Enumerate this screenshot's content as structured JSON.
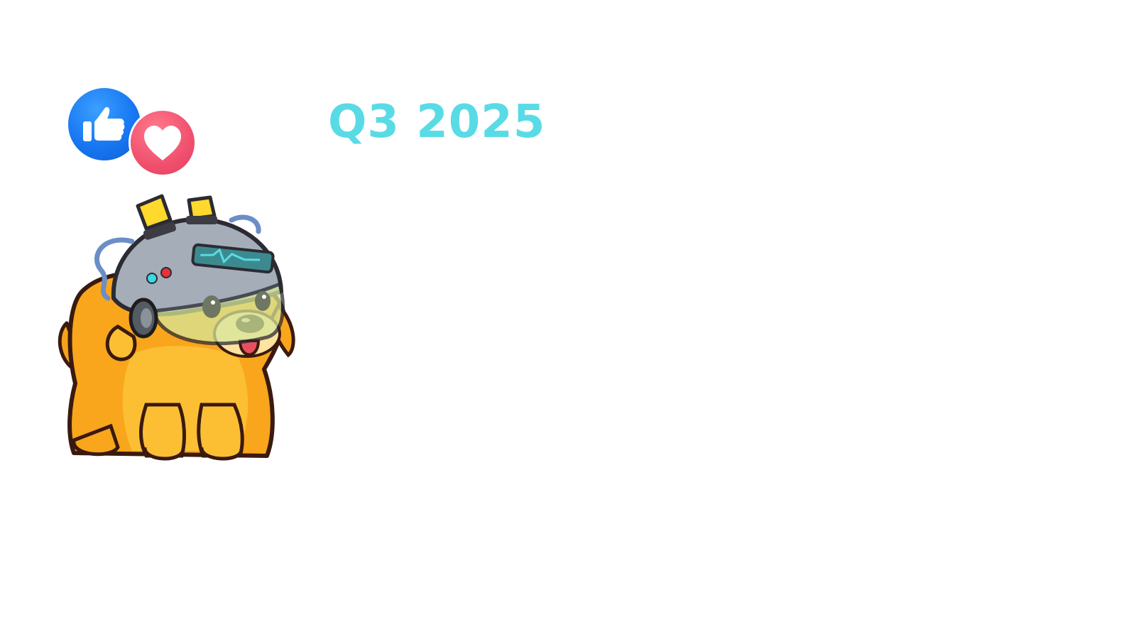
{
  "header": {
    "period_label": "Q3 2025"
  },
  "reactions": {
    "like_icon": "thumbs-up-icon",
    "love_icon": "heart-icon",
    "like_color": "#1877f2",
    "love_color": "#f0506e"
  },
  "mascot": {
    "icon": "dog-mascot-with-helmet",
    "fur_color": "#fbb824",
    "helmet_color": "#9ea7b3",
    "accent_color": "#59dbe5"
  },
  "theme": {
    "background": "#ffffff",
    "title_color": "#59dbe5"
  }
}
